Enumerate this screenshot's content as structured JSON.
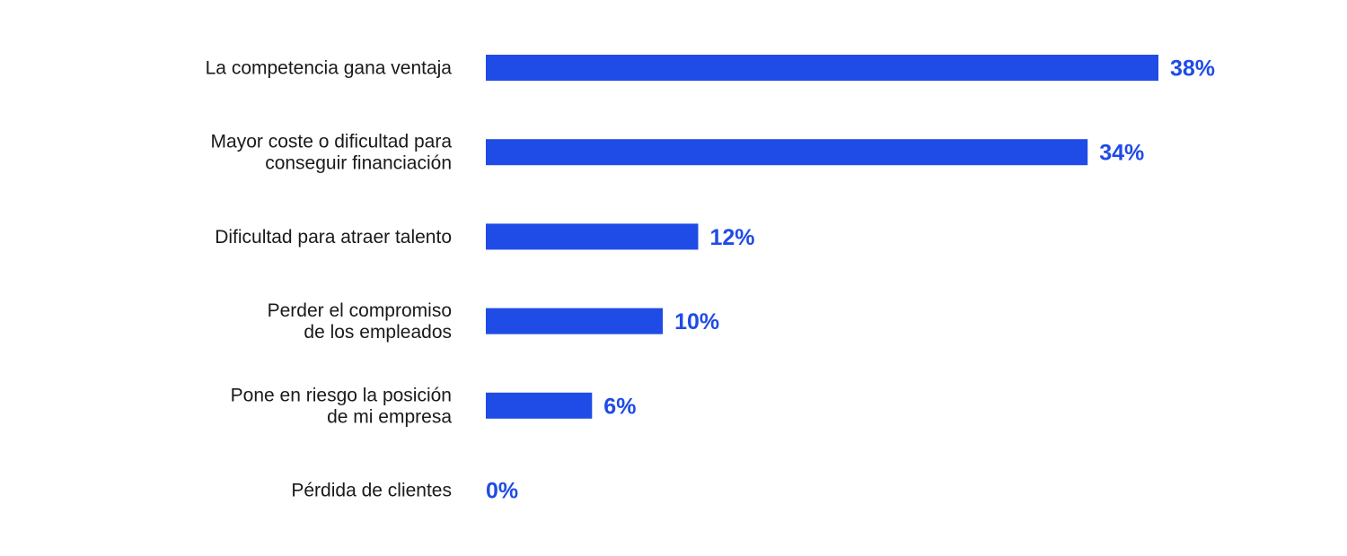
{
  "chart_data": {
    "type": "bar",
    "orientation": "horizontal",
    "categories": [
      [
        "La competencia gana ventaja"
      ],
      [
        "Mayor coste o dificultad para",
        "conseguir financiación"
      ],
      [
        "Dificultad para atraer talento"
      ],
      [
        "Perder el compromiso",
        "de los empleados"
      ],
      [
        "Pone en riesgo la posición",
        "de mi empresa"
      ],
      [
        "Pérdida de clientes"
      ]
    ],
    "values": [
      38,
      34,
      12,
      10,
      6,
      0
    ],
    "value_labels": [
      "38%",
      "34%",
      "12%",
      "10%",
      "6%",
      "0%"
    ],
    "unit": "%",
    "xlim": [
      0,
      38
    ],
    "grid": false,
    "bar_color": "#1f4be6",
    "value_label_color": "#1f4be6",
    "category_label_color": "#1a1a1a"
  }
}
